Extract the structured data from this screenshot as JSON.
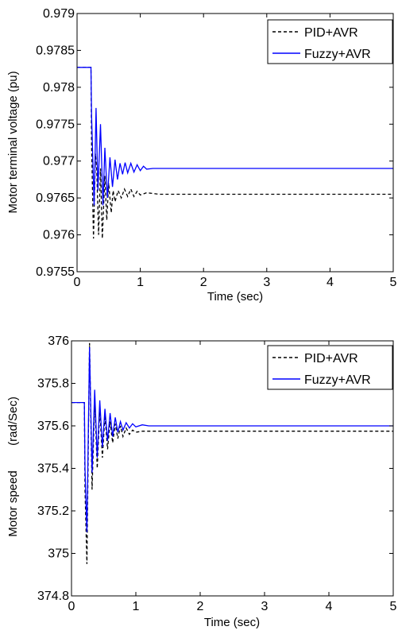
{
  "chart_data": [
    {
      "type": "line",
      "xlabel": "Time (sec)",
      "ylabel": "Motor terminal voltage (pu)",
      "xlim": [
        0,
        5
      ],
      "ylim": [
        0.9755,
        0.979
      ],
      "xticks": [
        "0",
        "1",
        "2",
        "3",
        "4",
        "5"
      ],
      "yticks": [
        "0.9755",
        "0.976",
        "0.9765",
        "0.977",
        "0.9775",
        "0.978",
        "0.9785",
        "0.979"
      ],
      "grid": false,
      "legend_position": "top-right",
      "series": [
        {
          "name": "PID+AVR",
          "style": "dashed",
          "color": "#000000",
          "x": [
            0,
            0.22,
            0.23,
            0.26,
            0.29,
            0.31,
            0.34,
            0.37,
            0.4,
            0.44,
            0.47,
            0.5,
            0.54,
            0.57,
            0.6,
            0.65,
            0.7,
            0.75,
            0.8,
            0.85,
            0.9,
            0.95,
            1.0,
            1.1,
            1.3,
            1.6,
            2.0,
            3.0,
            4.0,
            5.0
          ],
          "y": [
            0.97827,
            0.97827,
            0.9772,
            0.97595,
            0.9771,
            0.9769,
            0.976,
            0.9769,
            0.97595,
            0.9768,
            0.9762,
            0.9767,
            0.9763,
            0.9766,
            0.97645,
            0.9766,
            0.9765,
            0.97662,
            0.97652,
            0.97662,
            0.97652,
            0.97659,
            0.97654,
            0.97657,
            0.97655,
            0.97655,
            0.97655,
            0.97655,
            0.97655,
            0.97655
          ]
        },
        {
          "name": "Fuzzy+AVR",
          "style": "solid",
          "color": "#0000ff",
          "x": [
            0,
            0.22,
            0.23,
            0.27,
            0.3,
            0.33,
            0.37,
            0.41,
            0.44,
            0.48,
            0.52,
            0.56,
            0.6,
            0.64,
            0.68,
            0.72,
            0.76,
            0.8,
            0.85,
            0.9,
            0.95,
            1.0,
            1.05,
            1.1,
            1.2,
            1.4,
            1.7,
            2.0,
            3.0,
            4.0,
            5.0
          ],
          "y": [
            0.97827,
            0.97827,
            0.9776,
            0.9764,
            0.97772,
            0.9766,
            0.9775,
            0.9764,
            0.97718,
            0.9765,
            0.97705,
            0.97665,
            0.97702,
            0.97675,
            0.97697,
            0.97682,
            0.97698,
            0.97684,
            0.97697,
            0.97685,
            0.97695,
            0.97687,
            0.97693,
            0.97689,
            0.9769,
            0.9769,
            0.9769,
            0.9769,
            0.9769,
            0.9769,
            0.9769
          ]
        }
      ]
    },
    {
      "type": "line",
      "xlabel": "Time (sec)",
      "ylabel": "Motor speed",
      "ylabel_unit": "(rad/Sec)",
      "xlim": [
        0,
        5
      ],
      "ylim": [
        374.8,
        376
      ],
      "xticks": [
        "0",
        "1",
        "2",
        "3",
        "4",
        "5"
      ],
      "yticks": [
        "374.8",
        "375",
        "375.2",
        "375.4",
        "375.6",
        "375.8",
        "376"
      ],
      "grid": false,
      "legend_position": "top-right",
      "series": [
        {
          "name": "PID+AVR",
          "style": "dashed",
          "color": "#000000",
          "x": [
            0,
            0.2,
            0.21,
            0.24,
            0.28,
            0.32,
            0.36,
            0.4,
            0.44,
            0.48,
            0.52,
            0.56,
            0.6,
            0.64,
            0.68,
            0.72,
            0.76,
            0.8,
            0.85,
            0.9,
            0.95,
            1.0,
            1.1,
            1.2,
            1.4,
            1.7,
            2.0,
            3.0,
            4.0,
            5.0
          ],
          "y": [
            375.71,
            375.71,
            375.3,
            374.95,
            375.99,
            375.3,
            375.72,
            375.4,
            375.68,
            375.45,
            375.65,
            375.49,
            375.62,
            375.52,
            375.61,
            375.54,
            375.6,
            375.55,
            375.59,
            375.56,
            375.58,
            375.57,
            375.575,
            375.575,
            375.575,
            375.575,
            375.575,
            375.575,
            375.575,
            375.575
          ]
        },
        {
          "name": "Fuzzy+AVR",
          "style": "solid",
          "color": "#0000ff",
          "x": [
            0,
            0.2,
            0.21,
            0.24,
            0.28,
            0.32,
            0.36,
            0.4,
            0.44,
            0.48,
            0.52,
            0.56,
            0.6,
            0.64,
            0.68,
            0.72,
            0.76,
            0.8,
            0.85,
            0.9,
            0.95,
            1.0,
            1.1,
            1.2,
            1.4,
            1.7,
            2.0,
            3.0,
            4.0,
            5.0
          ],
          "y": [
            375.71,
            375.71,
            375.4,
            375.1,
            375.97,
            375.38,
            375.77,
            375.45,
            375.72,
            375.5,
            375.68,
            375.53,
            375.66,
            375.55,
            375.64,
            375.57,
            375.62,
            375.58,
            375.615,
            375.59,
            375.61,
            375.595,
            375.605,
            375.6,
            375.6,
            375.6,
            375.6,
            375.6,
            375.6,
            375.6
          ]
        }
      ]
    }
  ]
}
